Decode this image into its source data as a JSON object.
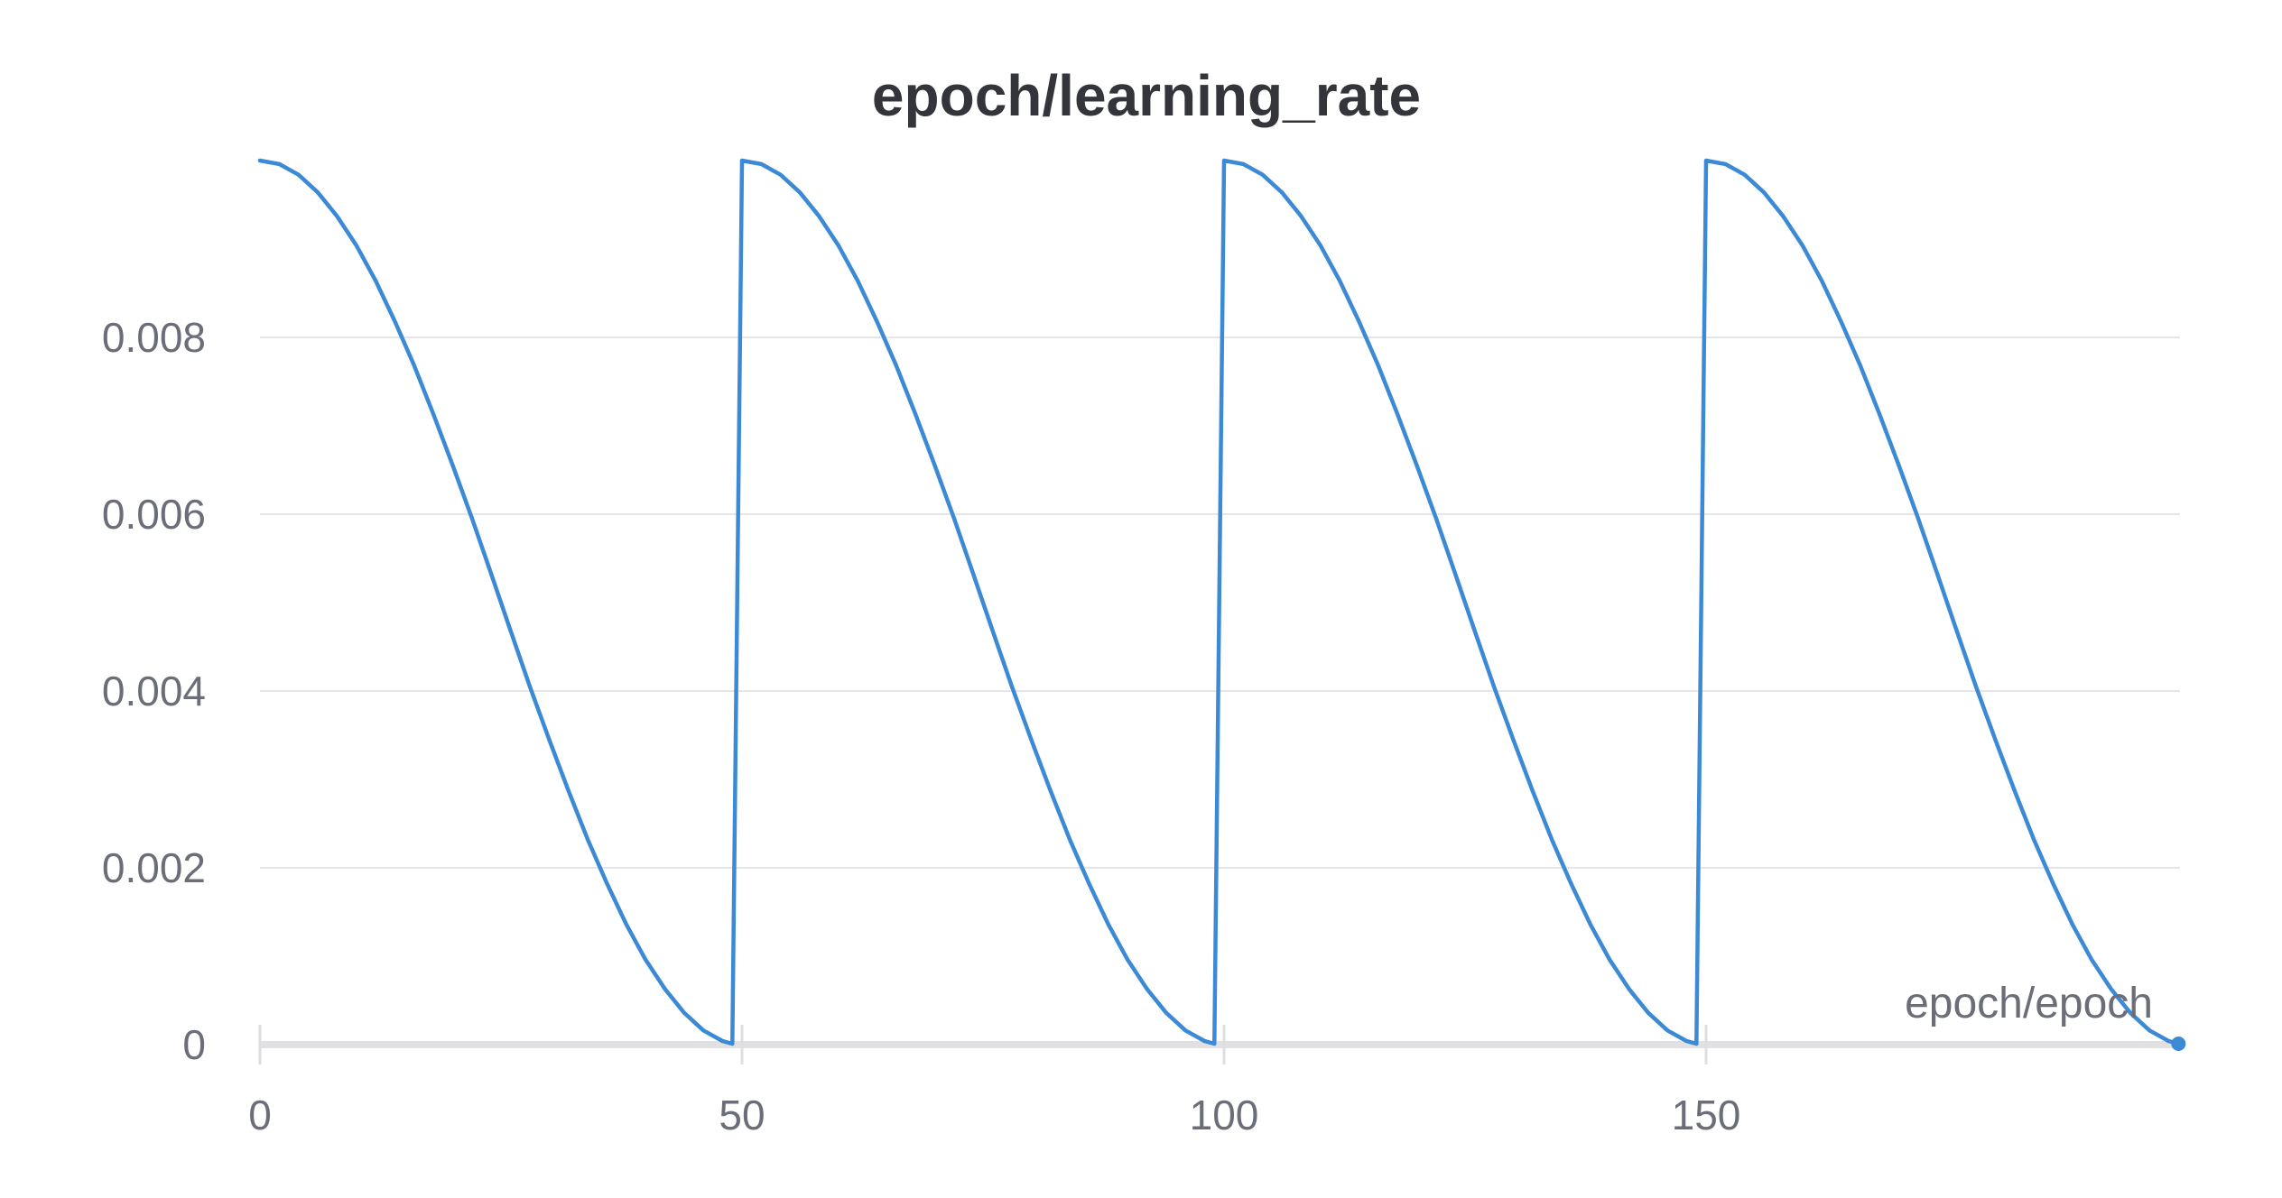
{
  "chart_data": {
    "type": "line",
    "title": "epoch/learning_rate",
    "xlabel": "epoch/epoch",
    "ylabel": "",
    "xlim": [
      0,
      199
    ],
    "ylim": [
      0,
      0.01
    ],
    "x_ticks": [
      0,
      50,
      100,
      150
    ],
    "x_tick_labels": [
      "0",
      "50",
      "100",
      "150"
    ],
    "y_ticks": [
      0,
      0.002,
      0.004,
      0.006,
      0.008
    ],
    "y_tick_labels": [
      "0",
      "0.002",
      "0.004",
      "0.006",
      "0.008"
    ],
    "grid": true,
    "series": [
      {
        "color": "#3c8ad6",
        "x": [
          0,
          2,
          4,
          6,
          8,
          10,
          12,
          14,
          16,
          18,
          20,
          22,
          24,
          26,
          28,
          30,
          32,
          34,
          36,
          38,
          40,
          42,
          44,
          46,
          48,
          49,
          50,
          52,
          54,
          56,
          58,
          60,
          62,
          64,
          66,
          68,
          70,
          72,
          74,
          76,
          78,
          80,
          82,
          84,
          86,
          88,
          90,
          92,
          94,
          96,
          98,
          99,
          100,
          102,
          104,
          106,
          108,
          110,
          112,
          114,
          116,
          118,
          120,
          122,
          124,
          126,
          128,
          130,
          132,
          134,
          136,
          138,
          140,
          142,
          144,
          146,
          148,
          149,
          150,
          152,
          154,
          156,
          158,
          160,
          162,
          164,
          166,
          168,
          170,
          172,
          174,
          176,
          178,
          180,
          182,
          184,
          186,
          188,
          190,
          192,
          194,
          196,
          198,
          199
        ],
        "values": [
          0.01,
          0.00996,
          0.00984,
          0.00964,
          0.00937,
          0.00904,
          0.00864,
          0.00818,
          0.00768,
          0.00713,
          0.00655,
          0.00595,
          0.00532,
          0.00468,
          0.00405,
          0.00345,
          0.00287,
          0.00232,
          0.00182,
          0.00136,
          0.00096,
          0.00063,
          0.00036,
          0.00016,
          4e-05,
          1e-05,
          0.01,
          0.00996,
          0.00984,
          0.00964,
          0.00937,
          0.00904,
          0.00864,
          0.00818,
          0.00768,
          0.00713,
          0.00655,
          0.00595,
          0.00532,
          0.00468,
          0.00405,
          0.00345,
          0.00287,
          0.00232,
          0.00182,
          0.00136,
          0.00096,
          0.00063,
          0.00036,
          0.00016,
          4e-05,
          1e-05,
          0.01,
          0.00996,
          0.00984,
          0.00964,
          0.00937,
          0.00904,
          0.00864,
          0.00818,
          0.00768,
          0.00713,
          0.00655,
          0.00595,
          0.00532,
          0.00468,
          0.00405,
          0.00345,
          0.00287,
          0.00232,
          0.00182,
          0.00136,
          0.00096,
          0.00063,
          0.00036,
          0.00016,
          4e-05,
          1e-05,
          0.01,
          0.00996,
          0.00984,
          0.00964,
          0.00937,
          0.00904,
          0.00864,
          0.00818,
          0.00768,
          0.00713,
          0.00655,
          0.00595,
          0.00532,
          0.00468,
          0.00405,
          0.00345,
          0.00287,
          0.00232,
          0.00182,
          0.00136,
          0.00096,
          0.00063,
          0.00036,
          0.00016,
          4e-05,
          1e-05
        ]
      }
    ]
  }
}
